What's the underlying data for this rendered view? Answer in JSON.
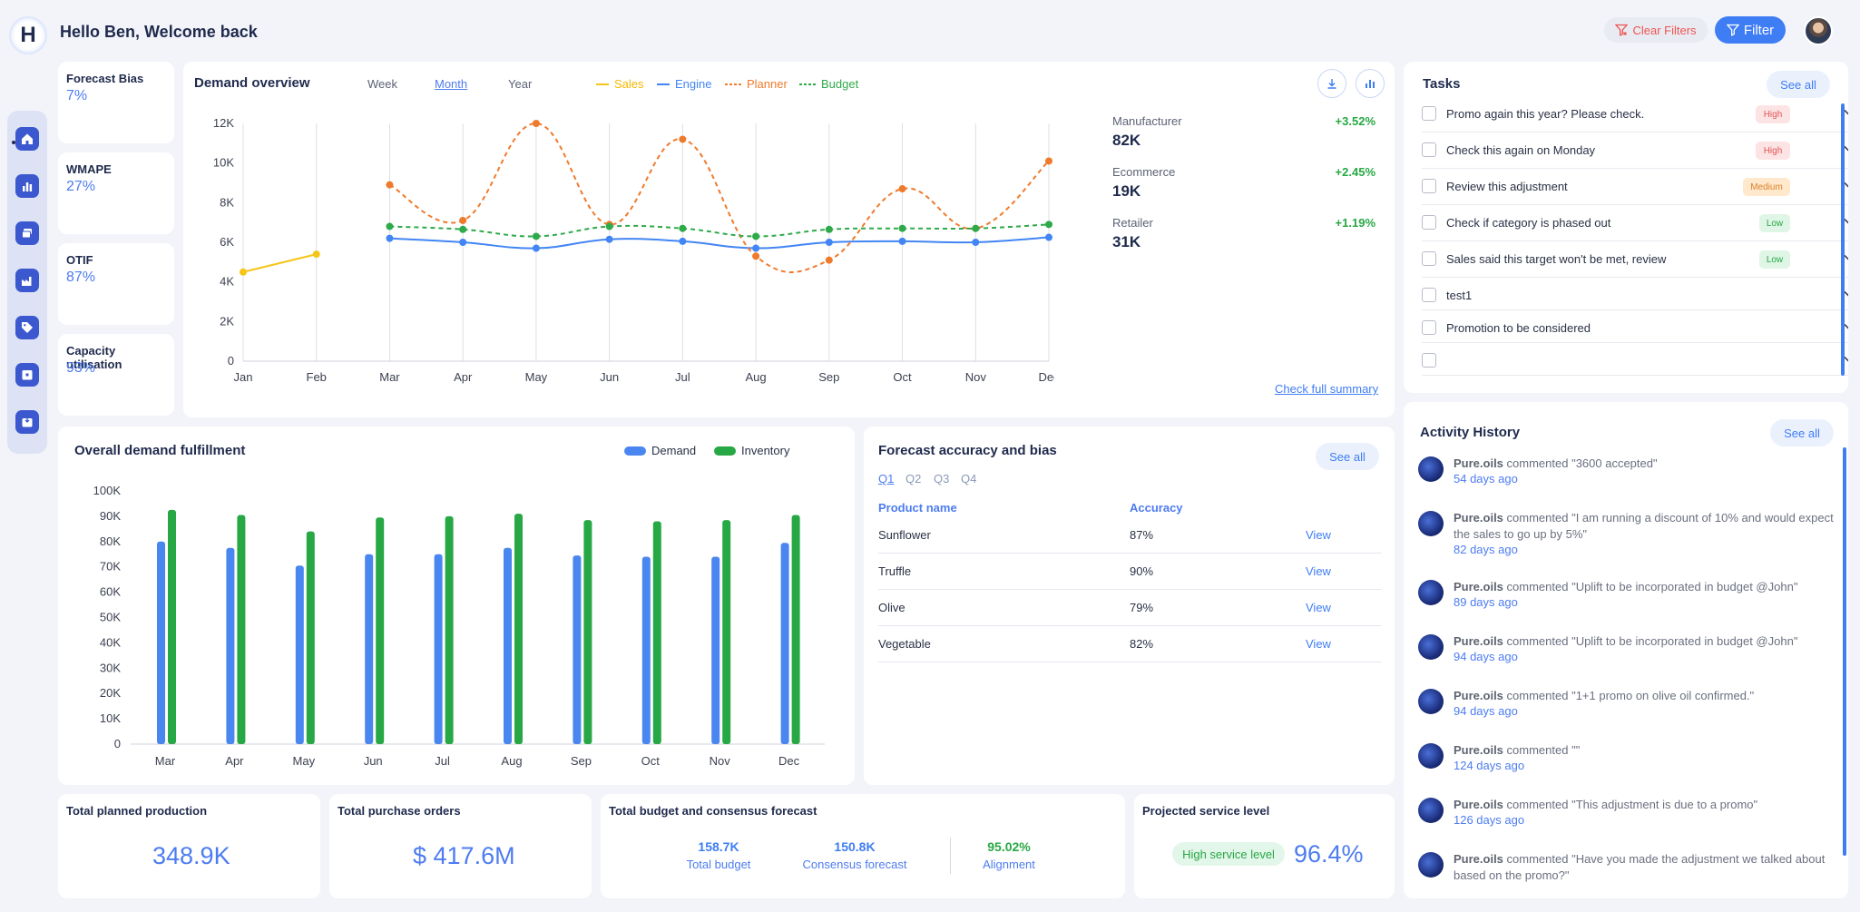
{
  "header": {
    "logo_letter": "H",
    "greeting": "Hello Ben, Welcome back",
    "clear_filters": "Clear Filters",
    "filter": "Filter"
  },
  "nav": {
    "items": [
      "home-icon",
      "bar-chart-icon",
      "layers-icon",
      "factory-icon",
      "tag-icon",
      "calendar-icon",
      "inbox-icon"
    ]
  },
  "kpis": [
    {
      "title": "Forecast Bias",
      "value": "7%"
    },
    {
      "title": "WMAPE",
      "value": "27%"
    },
    {
      "title": "OTIF",
      "value": "87%"
    },
    {
      "title": "Capacity utilisation",
      "value": "93%"
    }
  ],
  "demand_overview": {
    "title": "Demand overview",
    "tabs": [
      "Week",
      "Month",
      "Year"
    ],
    "active_tab": "Month",
    "legend": [
      "Sales",
      "Engine",
      "Planner",
      "Budget"
    ],
    "segments": [
      {
        "name": "Manufacturer",
        "value": "82K",
        "change": "+3.52%"
      },
      {
        "name": "Ecommerce",
        "value": "19K",
        "change": "+2.45%"
      },
      {
        "name": "Retailer",
        "value": "31K",
        "change": "+1.19%"
      }
    ],
    "link": "Check full summary"
  },
  "tasks": {
    "title": "Tasks",
    "see_all": "See all",
    "items": [
      {
        "label": "Promo again this year? Please check.",
        "badge": "High"
      },
      {
        "label": "Check this again on Monday",
        "badge": "High"
      },
      {
        "label": "Review this adjustment",
        "badge": "Medium"
      },
      {
        "label": "Check if category is phased out",
        "badge": "Low"
      },
      {
        "label": "Sales said this target won't be met, review",
        "badge": "Low"
      },
      {
        "label": "test1",
        "badge": ""
      },
      {
        "label": "Promotion to be considered",
        "badge": ""
      },
      {
        "label": "",
        "badge": ""
      }
    ]
  },
  "fulfillment": {
    "title": "Overall demand fulfillment",
    "legend": [
      "Demand",
      "Inventory"
    ]
  },
  "forecast_accuracy": {
    "title": "Forecast accuracy and bias",
    "see_all": "See all",
    "quarters": [
      "Q1",
      "Q2",
      "Q3",
      "Q4"
    ],
    "columns": [
      "Product name",
      "Accuracy"
    ],
    "rows": [
      {
        "product": "Sunflower",
        "accuracy": "87%",
        "action": "View"
      },
      {
        "product": "Truffle",
        "accuracy": "90%",
        "action": "View"
      },
      {
        "product": "Olive",
        "accuracy": "79%",
        "action": "View"
      },
      {
        "product": "Vegetable",
        "accuracy": "82%",
        "action": "View"
      }
    ]
  },
  "activity": {
    "title": "Activity History",
    "see_all": "See all",
    "items": [
      {
        "user": "Pure.oils",
        "text": "commented \"3600 accepted\"",
        "time": "54 days ago"
      },
      {
        "user": "Pure.oils",
        "text": "commented \"I am running a discount of 10% and would expect the sales to go up by 5%\"",
        "time": "82 days ago"
      },
      {
        "user": "Pure.oils",
        "text": "commented \"Uplift to be incorporated in budget @John\"",
        "time": "89 days ago"
      },
      {
        "user": "Pure.oils",
        "text": "commented \"Uplift to be incorporated in budget @John\"",
        "time": "94 days ago"
      },
      {
        "user": "Pure.oils",
        "text": "commented \"1+1 promo on olive oil confirmed.\"",
        "time": "94 days ago"
      },
      {
        "user": "Pure.oils",
        "text": "commented \"\"",
        "time": "124 days ago"
      },
      {
        "user": "Pure.oils",
        "text": "commented \"This adjustment is due to a promo\"",
        "time": "126 days ago"
      },
      {
        "user": "Pure.oils",
        "text": "commented \"Have you made the adjustment we talked about based on the promo?\"",
        "time": ""
      }
    ]
  },
  "bottom": {
    "planned_production": {
      "title": "Total planned production",
      "value": "348.9K"
    },
    "purchase_orders": {
      "title": "Total purchase orders",
      "value": "$ 417.6M"
    },
    "budget_consensus": {
      "title": "Total budget and consensus forecast",
      "total_budget": "158.7K",
      "total_budget_label": "Total budget",
      "consensus": "150.8K",
      "consensus_label": "Consensus forecast",
      "alignment": "95.02%",
      "alignment_label": "Alignment"
    },
    "service_level": {
      "title": "Projected service level",
      "badge": "High service level",
      "value": "96.4%"
    }
  },
  "colors": {
    "sales": "#f5c518",
    "engine": "#4285f4",
    "planner": "#f07a2c",
    "budget": "#2eaa4a",
    "demand": "#4a86f0",
    "inventory": "#27a844"
  },
  "chart_data": [
    {
      "type": "line",
      "categories": [
        "Jan",
        "Feb",
        "Mar",
        "Apr",
        "May",
        "Jun",
        "Jul",
        "Aug",
        "Sep",
        "Oct",
        "Nov",
        "Dec"
      ],
      "ylim": [
        0,
        12000
      ],
      "yticks": [
        "0",
        "2K",
        "4K",
        "6K",
        "8K",
        "10K",
        "12K"
      ],
      "series": [
        {
          "name": "Sales",
          "values": [
            4500,
            5400,
            null,
            null,
            null,
            null,
            null,
            null,
            null,
            null,
            null,
            null
          ]
        },
        {
          "name": "Engine",
          "values": [
            null,
            null,
            6200,
            6000,
            5700,
            6150,
            6050,
            5700,
            6000,
            6050,
            6000,
            6250
          ]
        },
        {
          "name": "Planner",
          "values": [
            null,
            null,
            8900,
            7100,
            12000,
            6900,
            11200,
            5300,
            5100,
            8700,
            6700,
            10100
          ]
        },
        {
          "name": "Budget",
          "values": [
            null,
            null,
            6800,
            6650,
            6300,
            6800,
            6700,
            6300,
            6650,
            6700,
            6700,
            6900
          ]
        }
      ]
    },
    {
      "type": "bar",
      "categories": [
        "Mar",
        "Apr",
        "May",
        "Jun",
        "Jul",
        "Aug",
        "Sep",
        "Oct",
        "Nov",
        "Dec"
      ],
      "ylim": [
        0,
        100000
      ],
      "yticks": [
        "0",
        "10K",
        "20K",
        "30K",
        "40K",
        "50K",
        "60K",
        "70K",
        "80K",
        "90K",
        "100K"
      ],
      "series": [
        {
          "name": "Demand",
          "values": [
            80000,
            77500,
            70500,
            75000,
            75000,
            77500,
            74500,
            74000,
            74000,
            79500
          ]
        },
        {
          "name": "Inventory",
          "values": [
            92500,
            90500,
            84000,
            89500,
            90000,
            91000,
            88500,
            88000,
            88500,
            90500
          ]
        }
      ]
    }
  ]
}
